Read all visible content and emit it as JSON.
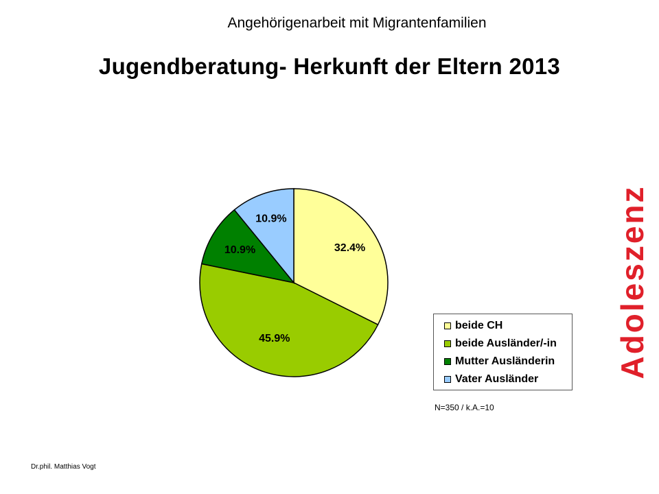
{
  "header": {
    "subtitle": "Angehörigenarbeit  mit Migrantenfamilien",
    "title": "Jugendberatung- Herkunft der Eltern 2013",
    "side_label": "Adoleszenz"
  },
  "note": "N=350  / k.A.=10",
  "footer": "Dr.phil. Matthias Vogt",
  "chart_data": {
    "type": "pie",
    "categories": [
      "beide CH",
      "beide Ausländer/-in",
      "Mutter Ausländerin",
      "Vater Ausländer"
    ],
    "values": [
      32.4,
      45.9,
      10.9,
      10.9
    ],
    "data_labels": [
      "32.4%",
      "45.9%",
      "10.9%",
      "10.9%"
    ],
    "colors": [
      "#ffff99",
      "#99cc00",
      "#008000",
      "#99ccff"
    ],
    "start": "12 o'clock, clockwise",
    "legend_placement": "bottom-right"
  }
}
